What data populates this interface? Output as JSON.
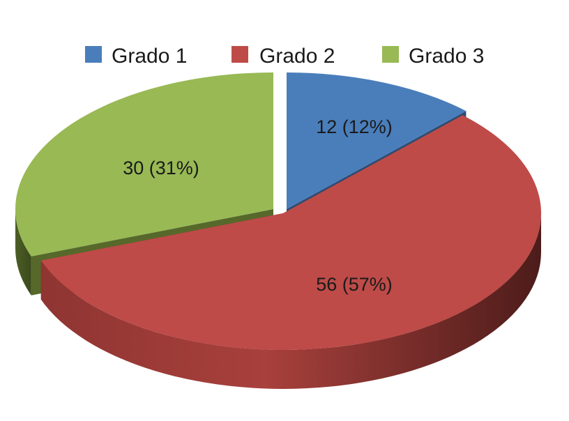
{
  "chart_data": {
    "type": "pie",
    "title": "",
    "legend_position": "top",
    "categories": [
      "Grado 1",
      "Grado 2",
      "Grado 3"
    ],
    "values": [
      12,
      56,
      30
    ],
    "percent_labels": [
      "12%",
      "57%",
      "31%"
    ],
    "data_labels": [
      "12 (12%)",
      "56 (57%)",
      "30 (31%)"
    ],
    "colors": [
      "#4a7ebb",
      "#be4b48",
      "#98b954"
    ],
    "side_colors": [
      "#2c4c74",
      "#6e2624",
      "#56692b"
    ],
    "three_d": true
  }
}
